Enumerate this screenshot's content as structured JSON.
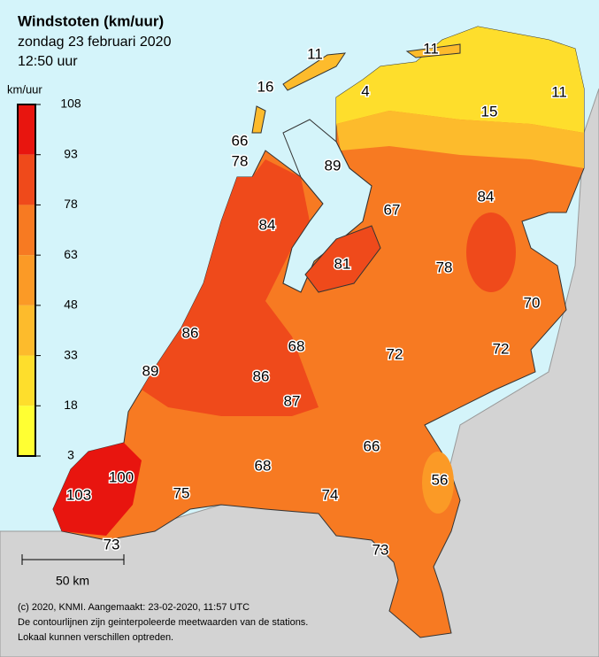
{
  "header": {
    "title": "Windstoten (km/uur)",
    "date": "zondag 23 februari 2020",
    "time": "12:50 uur"
  },
  "legend": {
    "unit": "km/uur",
    "ticks": [
      108,
      93,
      78,
      63,
      48,
      33,
      18,
      3
    ],
    "colors": [
      "#e8150f",
      "#ef4a1b",
      "#f77a22",
      "#fb9a26",
      "#fdbb2c",
      "#fede2c",
      "#ffff33"
    ]
  },
  "stations": [
    11,
    11,
    16,
    4,
    11,
    15,
    66,
    78,
    89,
    84,
    67,
    84,
    81,
    78,
    70,
    86,
    68,
    72,
    72,
    89,
    86,
    87,
    66,
    100,
    68,
    56,
    103,
    75,
    74,
    73,
    73
  ],
  "scale": {
    "label": "50 km"
  },
  "footer": [
    "(c) 2020, KNMI. Aangemaakt: 23-02-2020, 11:57 UTC",
    "De contourlijnen zijn geinterpoleerde meetwaarden van de stations.",
    "Lokaal kunnen verschillen optreden."
  ]
}
